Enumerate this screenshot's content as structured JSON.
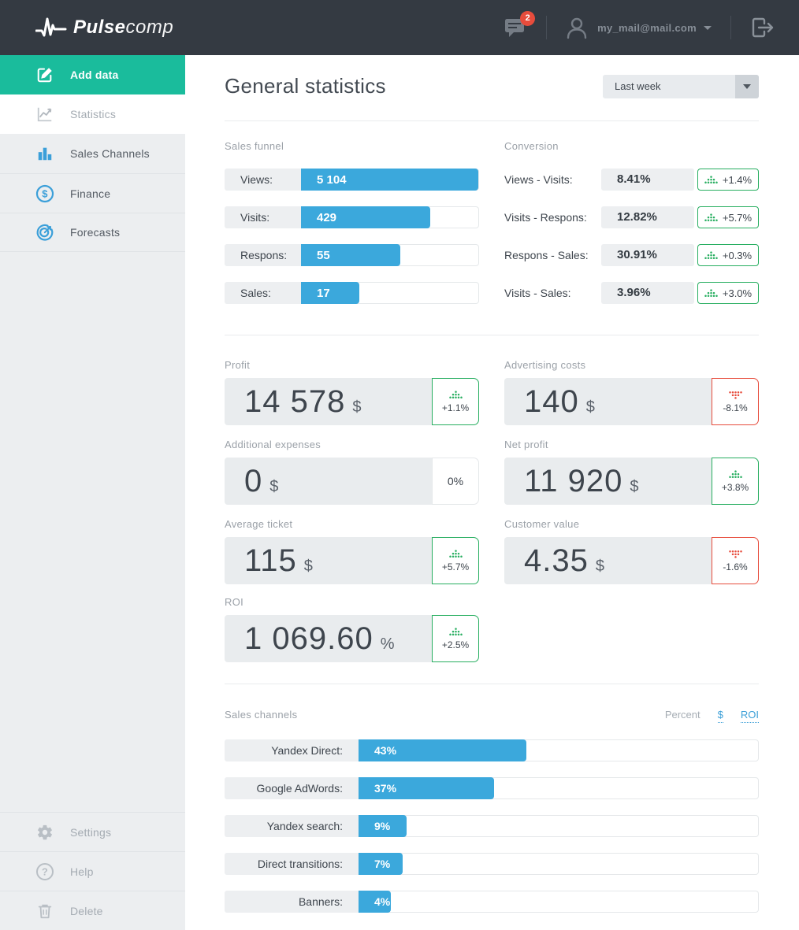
{
  "topbar": {
    "brand_bold": "Pulse",
    "brand_light": "comp",
    "messages_count": "2",
    "user_email": "my_mail@mail.com"
  },
  "sidebar": {
    "items": [
      {
        "label": "Add data",
        "active": true
      },
      {
        "label": "Statistics"
      },
      {
        "label": "Sales Channels"
      },
      {
        "label": "Finance"
      },
      {
        "label": "Forecasts"
      }
    ],
    "footer": [
      {
        "label": "Settings"
      },
      {
        "label": "Help"
      },
      {
        "label": "Delete"
      }
    ]
  },
  "header": {
    "title": "General statistics",
    "period": "Last week"
  },
  "funnel": {
    "title": "Sales funnel",
    "rows": [
      {
        "label": "Views:",
        "value": "5 104",
        "pct": 100
      },
      {
        "label": "Visits:",
        "value": "429",
        "pct": 73
      },
      {
        "label": "Respons:",
        "value": "55",
        "pct": 56
      },
      {
        "label": "Sales:",
        "value": "17",
        "pct": 33
      }
    ]
  },
  "conversion": {
    "title": "Conversion",
    "rows": [
      {
        "label": "Views - Visits:",
        "value": "8.41%",
        "delta": "+1.4%",
        "trend": "up"
      },
      {
        "label": "Visits - Respons:",
        "value": "12.82%",
        "delta": "+5.7%",
        "trend": "up"
      },
      {
        "label": "Respons - Sales:",
        "value": "30.91%",
        "delta": "+0.3%",
        "trend": "up"
      },
      {
        "label": "Visits - Sales:",
        "value": "3.96%",
        "delta": "+3.0%",
        "trend": "up"
      }
    ]
  },
  "metrics": [
    {
      "label": "Profit",
      "value": "14 578",
      "unit": "$",
      "delta": "+1.1%",
      "trend": "up"
    },
    {
      "label": "Advertising costs",
      "value": "140",
      "unit": "$",
      "delta": "-8.1%",
      "trend": "down"
    },
    {
      "label": "Additional expenses",
      "value": "0",
      "unit": "$",
      "delta": "0%",
      "trend": "neutral"
    },
    {
      "label": "Net profit",
      "value": "11 920",
      "unit": "$",
      "delta": "+3.8%",
      "trend": "up"
    },
    {
      "label": "Average ticket",
      "value": "115",
      "unit": "$",
      "delta": "+5.7%",
      "trend": "up"
    },
    {
      "label": "Customer value",
      "value": "4.35",
      "unit": "$",
      "delta": "-1.6%",
      "trend": "down"
    },
    {
      "label": "ROI",
      "value": "1 069.60",
      "unit": "%",
      "delta": "+2.5%",
      "trend": "up"
    }
  ],
  "channels": {
    "title": "Sales channels",
    "modes": [
      {
        "label": "Percent",
        "state": "selected"
      },
      {
        "label": "$",
        "state": "link"
      },
      {
        "label": "ROI",
        "state": "link"
      }
    ],
    "rows": [
      {
        "label": "Yandex Direct:",
        "value": "43%",
        "pct": 42
      },
      {
        "label": "Google AdWords:",
        "value": "37%",
        "pct": 34
      },
      {
        "label": "Yandex search:",
        "value": "9%",
        "pct": 12
      },
      {
        "label": "Direct transitions:",
        "value": "7%",
        "pct": 11
      },
      {
        "label": "Banners:",
        "value": "4%",
        "pct": 8
      }
    ]
  },
  "colors": {
    "accent_green": "#1abc9c",
    "bar_blue": "#3ba8dc",
    "positive": "#27ae60",
    "negative": "#e74c3c",
    "topbar_dark": "#343a42"
  }
}
